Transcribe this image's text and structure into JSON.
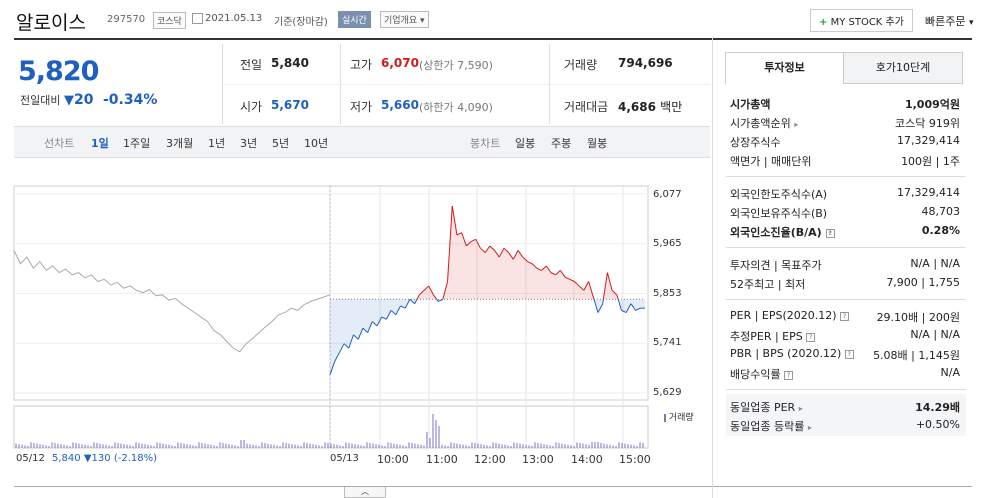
{
  "header": {
    "name": "알로이스",
    "code": "297570",
    "market": "코스닥",
    "date": "2021.05.13",
    "basis": "기준(장마감)",
    "realtime": "실시간",
    "company_info": "기업개요",
    "mystock": "MY STOCK 추가",
    "quick_order": "빠른주문"
  },
  "summary": {
    "price": "5,820",
    "change_label": "전일대비",
    "change_value": "20",
    "change_pct": "-0.34%",
    "prev_label": "전일",
    "prev": "5,840",
    "open_label": "시가",
    "open": "5,670",
    "high_label": "고가",
    "high": "6,070",
    "upper_limit": "(상한가 7,590)",
    "low_label": "저가",
    "low": "5,660",
    "lower_limit": "(하한가 4,090)",
    "volume_label": "거래량",
    "volume": "794,696",
    "amount_label": "거래대금",
    "amount": "4,686",
    "amount_unit": "백만"
  },
  "toolbar": {
    "line_label": "선차트",
    "periods": [
      "1일",
      "1주일",
      "3개월",
      "1년",
      "3년",
      "5년",
      "10년"
    ],
    "candle_label": "봉차트",
    "candles": [
      "일봉",
      "주봉",
      "월봉"
    ]
  },
  "tabs": {
    "invest": "투자정보",
    "quote10": "호가10단계"
  },
  "info": {
    "market_cap_label": "시가총액",
    "market_cap": "1,009억원",
    "rank_label": "시가총액순위",
    "rank": "코스닥 919위",
    "shares_label": "상장주식수",
    "shares": "17,329,414",
    "par_label": "액면가 | 매매단위",
    "par": "100원 | 1주",
    "foreign_limit_label": "외국인한도주식수(A)",
    "foreign_limit": "17,329,414",
    "foreign_hold_label": "외국인보유주식수(B)",
    "foreign_hold": "48,703",
    "foreign_ratio_label": "외국인소진율(B/A)",
    "foreign_ratio": "0.28%",
    "opinion_label": "투자의견 | 목표주가",
    "opinion": "N/A | N/A",
    "week52_label": "52주최고 | 최저",
    "week52": "7,900 | 1,755",
    "per_label": "PER | EPS(2020.12)",
    "per": "29.10배 | 200원",
    "est_per_label": "추정PER | EPS",
    "est_per": "N/A | N/A",
    "pbr_label": "PBR | BPS (2020.12)",
    "pbr": "5.08배 | 1,145원",
    "dividend_label": "배당수익률",
    "dividend": "N/A",
    "sector_per_label": "동일업종 PER",
    "sector_per": "14.29배",
    "sector_rate_label": "동일업종 등락률",
    "sector_rate": "+0.50%"
  },
  "chart_data": {
    "type": "line",
    "yticks": [
      "6,077",
      "5,965",
      "5,853",
      "5,741",
      "5,629"
    ],
    "xticks": [
      "05/13",
      "10:00",
      "11:00",
      "12:00",
      "13:00",
      "14:00",
      "15:00"
    ],
    "volume_legend": "거래량",
    "prev_day_label": "05/12",
    "prev_day_price": "5,840",
    "prev_day_change": "130",
    "prev_day_pct": "(-2.18%)",
    "baseline": 5840,
    "ylim": [
      5629,
      6077
    ],
    "colors": {
      "up": "#d41b1b",
      "down": "#1f5fbf",
      "prev": "#aaaaaa"
    },
    "prev_series": [
      5950,
      5920,
      5935,
      5910,
      5925,
      5905,
      5915,
      5900,
      5908,
      5895,
      5900,
      5888,
      5895,
      5880,
      5885,
      5872,
      5878,
      5865,
      5870,
      5860,
      5855,
      5862,
      5848,
      5850,
      5838,
      5842,
      5830,
      5820,
      5810,
      5800,
      5790,
      5770,
      5760,
      5745,
      5730,
      5722,
      5740,
      5752,
      5765,
      5778,
      5790,
      5805,
      5810,
      5820,
      5815,
      5828,
      5835,
      5840,
      5845,
      5850
    ],
    "today_series": [
      5670,
      5700,
      5720,
      5740,
      5730,
      5760,
      5750,
      5775,
      5765,
      5790,
      5780,
      5800,
      5795,
      5815,
      5805,
      5825,
      5820,
      5840,
      5830,
      5850,
      5860,
      5870,
      5850,
      5835,
      5840,
      5880,
      6050,
      5985,
      5990,
      5960,
      5970,
      5975,
      5955,
      5945,
      5960,
      5950,
      5935,
      5955,
      5945,
      5930,
      5950,
      5935,
      5925,
      5920,
      5910,
      5905,
      5915,
      5900,
      5895,
      5905,
      5890,
      5885,
      5880,
      5870,
      5860,
      5880,
      5845,
      5810,
      5830,
      5900,
      5860,
      5850,
      5815,
      5810,
      5830,
      5815,
      5820,
      5820
    ]
  }
}
